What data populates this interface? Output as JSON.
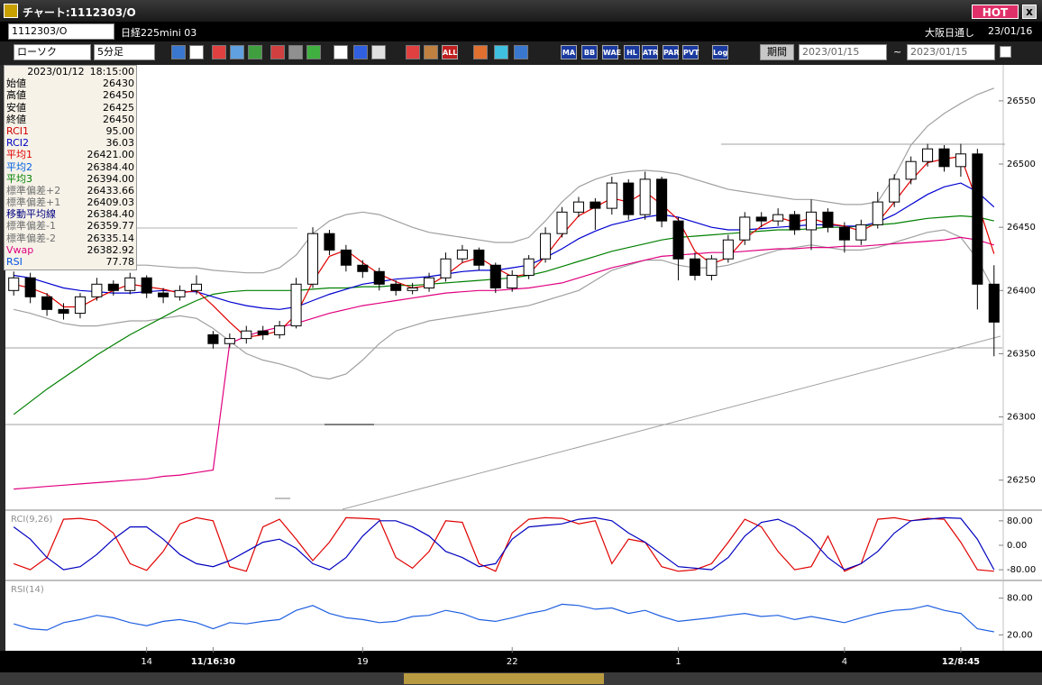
{
  "window": {
    "title": "チャート:1112303/O",
    "hot": "HOT"
  },
  "toolbar": {
    "code": "1112303/O",
    "name": "日経225mini 03",
    "market": "大阪日通し",
    "date": "23/01/16",
    "chart_type": "ローソク",
    "interval": "5分足",
    "buttons": [
      "ALL",
      "MA",
      "BB",
      "WAE",
      "HL",
      "ATR",
      "PAR",
      "PVT",
      "Log"
    ],
    "period": "期間",
    "from": "2023/01/15",
    "sep": "~",
    "to": "2023/01/15"
  },
  "info_panel": {
    "date": "2023/01/12",
    "time": "18:15:00",
    "rows": [
      {
        "label": "始値",
        "value": "26430",
        "color": "#000000"
      },
      {
        "label": "高値",
        "value": "26450",
        "color": "#000000"
      },
      {
        "label": "安値",
        "value": "26425",
        "color": "#000000"
      },
      {
        "label": "終値",
        "value": "26450",
        "color": "#000000"
      },
      {
        "label": "RCI1",
        "value": "95.00",
        "color": "#d00000"
      },
      {
        "label": "RCI2",
        "value": "36.03",
        "color": "#0000c0"
      },
      {
        "label": "平均1",
        "value": "26421.00",
        "color": "#e00000"
      },
      {
        "label": "平均2",
        "value": "26384.40",
        "color": "#0060e0"
      },
      {
        "label": "平均3",
        "value": "26394.00",
        "color": "#008000"
      },
      {
        "label": "標準偏差+2",
        "value": "26433.66",
        "color": "#707070"
      },
      {
        "label": "標準偏差+1",
        "value": "26409.03",
        "color": "#707070"
      },
      {
        "label": "移動平均線",
        "value": "26384.40",
        "color": "#000080"
      },
      {
        "label": "標準偏差-1",
        "value": "26359.77",
        "color": "#707070"
      },
      {
        "label": "標準偏差-2",
        "value": "26335.14",
        "color": "#707070"
      },
      {
        "label": "Vwap",
        "value": "26382.92",
        "color": "#e0007f"
      },
      {
        "label": "RSI",
        "value": "77.78",
        "color": "#0050e0"
      }
    ]
  },
  "chart_data": [
    {
      "type": "candlestick",
      "categories": [
        null,
        null,
        null,
        null,
        null,
        null,
        null,
        null,
        "14",
        null,
        null,
        null,
        "11/16:30",
        null,
        null,
        null,
        null,
        null,
        null,
        null,
        null,
        "19",
        null,
        null,
        null,
        null,
        null,
        null,
        null,
        null,
        "22",
        null,
        null,
        null,
        null,
        null,
        null,
        null,
        null,
        null,
        "1",
        null,
        null,
        null,
        null,
        null,
        null,
        null,
        null,
        null,
        "4",
        null,
        null,
        null,
        null,
        null,
        null,
        "12/8:45",
        null,
        null
      ],
      "open": [
        26400,
        26410,
        26395,
        26385,
        26382,
        26395,
        26405,
        26400,
        26410,
        26398,
        26395,
        26400,
        26365,
        26358,
        26362,
        26368,
        26365,
        26372,
        26405,
        26445,
        26432,
        26420,
        26415,
        26405,
        26400,
        26402,
        26410,
        26425,
        26432,
        26420,
        26402,
        26412,
        26425,
        26445,
        26462,
        26470,
        26465,
        26485,
        26460,
        26488,
        26455,
        26425,
        26412,
        26425,
        26440,
        26458,
        26455,
        26460,
        26448,
        26462,
        26450,
        26440,
        26452,
        26470,
        26488,
        26502,
        26512,
        26498,
        26508,
        26405
      ],
      "high": [
        26415,
        26414,
        26398,
        26390,
        26398,
        26410,
        26408,
        26414,
        26412,
        26402,
        26404,
        26412,
        26368,
        26366,
        26372,
        26372,
        26376,
        26410,
        26450,
        26448,
        26436,
        26424,
        26418,
        26408,
        26406,
        26414,
        26430,
        26436,
        26434,
        26422,
        26416,
        26428,
        26450,
        26466,
        26474,
        26473,
        26490,
        26488,
        26494,
        26490,
        26458,
        26430,
        26428,
        26444,
        26462,
        26462,
        26465,
        26463,
        26472,
        26465,
        26454,
        26456,
        26478,
        26492,
        26506,
        26516,
        26515,
        26516,
        26512,
        26420
      ],
      "low": [
        26396,
        26390,
        26380,
        26377,
        26378,
        26392,
        26396,
        26397,
        26394,
        26390,
        26392,
        26397,
        26354,
        26355,
        26358,
        26361,
        26362,
        26370,
        26402,
        26428,
        26415,
        26410,
        26400,
        26396,
        26397,
        26399,
        26407,
        26422,
        26416,
        26398,
        26399,
        26409,
        26422,
        26442,
        26458,
        26448,
        26460,
        26456,
        26456,
        26450,
        26408,
        26408,
        26408,
        26422,
        26436,
        26450,
        26451,
        26444,
        26432,
        26446,
        26430,
        26436,
        26449,
        26466,
        26484,
        26498,
        26494,
        26490,
        26385,
        26348
      ],
      "close": [
        26410,
        26395,
        26385,
        26382,
        26395,
        26405,
        26400,
        26410,
        26398,
        26395,
        26400,
        26405,
        26358,
        26362,
        26368,
        26365,
        26372,
        26405,
        26445,
        26432,
        26420,
        26415,
        26405,
        26400,
        26402,
        26410,
        26425,
        26432,
        26420,
        26402,
        26412,
        26425,
        26445,
        26462,
        26470,
        26465,
        26485,
        26460,
        26488,
        26455,
        26425,
        26412,
        26425,
        26440,
        26458,
        26455,
        26460,
        26448,
        26462,
        26450,
        26440,
        26452,
        26470,
        26488,
        26502,
        26512,
        26498,
        26508,
        26405,
        26375
      ],
      "up_color": "#ffffff",
      "down_color": "#000000",
      "series": [
        {
          "color": "#a0a0a0",
          "values": [
            26430,
            26428,
            26426,
            26424,
            26422,
            26420,
            26420,
            26420,
            26420,
            26419,
            26418,
            26418,
            26416,
            26415,
            26414,
            26414,
            26418,
            26428,
            26445,
            26455,
            26460,
            26462,
            26460,
            26455,
            26450,
            26446,
            26444,
            26442,
            26440,
            26438,
            26438,
            26442,
            26455,
            26470,
            26482,
            26488,
            26492,
            26494,
            26495,
            26494,
            26492,
            26488,
            26484,
            26480,
            26478,
            26476,
            26474,
            26472,
            26472,
            26470,
            26468,
            26468,
            26470,
            26490,
            26515,
            26530,
            26540,
            26548,
            26555,
            26560
          ]
        },
        {
          "color": "#a0a0a0",
          "values": [
            26385,
            26382,
            26378,
            26374,
            26372,
            26372,
            26374,
            26376,
            26376,
            26378,
            26380,
            26378,
            26370,
            26360,
            26350,
            26345,
            26342,
            26338,
            26332,
            26330,
            26334,
            26345,
            26358,
            26368,
            26372,
            26376,
            26378,
            26380,
            26382,
            26384,
            26386,
            26388,
            26392,
            26396,
            26400,
            26408,
            26416,
            26420,
            26424,
            26424,
            26420,
            26418,
            26418,
            26420,
            26424,
            26428,
            26432,
            26434,
            26436,
            26434,
            26432,
            26432,
            26434,
            26438,
            26442,
            26446,
            26448,
            26442,
            26425,
            26400
          ]
        },
        {
          "color": "#e0007f",
          "values": [
            26243,
            26244,
            26245,
            26246,
            26247,
            26248,
            26249,
            26250,
            26251,
            26253,
            26254,
            26256,
            26258,
            26358,
            26364,
            26368,
            26371,
            26374,
            26378,
            26382,
            26385,
            26388,
            26390,
            26392,
            26394,
            26396,
            26398,
            26399,
            26400,
            26400,
            26401,
            26402,
            26404,
            26406,
            26410,
            26414,
            26418,
            26421,
            26424,
            26427,
            26428,
            26429,
            26430,
            26430,
            26431,
            26432,
            26433,
            26433,
            26434,
            26434,
            26435,
            26435,
            26436,
            26437,
            26438,
            26439,
            26440,
            26442,
            26440,
            26436
          ]
        },
        {
          "color": "#008000",
          "values": [
            26302,
            26312,
            26322,
            26331,
            26340,
            26349,
            26357,
            26365,
            26372,
            26379,
            26386,
            26392,
            26397,
            26399,
            26400,
            26400,
            26400,
            26400,
            26401,
            26402,
            26402,
            26403,
            26403,
            26404,
            26404,
            26405,
            26406,
            26407,
            26408,
            26409,
            26410,
            26412,
            26415,
            26419,
            26423,
            26427,
            26431,
            26434,
            26437,
            26440,
            26442,
            26443,
            26444,
            26445,
            26446,
            26447,
            26448,
            26448,
            26449,
            26450,
            26450,
            26451,
            26452,
            26453,
            26455,
            26457,
            26458,
            26459,
            26458,
            26455
          ]
        },
        {
          "color": "#0000d0",
          "values": [
            26412,
            26410,
            26406,
            26402,
            26400,
            26399,
            26398,
            26398,
            26399,
            26400,
            26399,
            26399,
            26395,
            26391,
            26388,
            26386,
            26385,
            26387,
            26392,
            26397,
            26401,
            26405,
            26407,
            26409,
            26410,
            26411,
            26413,
            26415,
            26416,
            26416,
            26418,
            26420,
            26426,
            26433,
            26441,
            26447,
            26452,
            26455,
            26458,
            26460,
            26458,
            26454,
            26450,
            26448,
            26448,
            26449,
            26450,
            26451,
            26452,
            26452,
            26451,
            26451,
            26454,
            26460,
            26468,
            26476,
            26482,
            26485,
            26478,
            26466
          ]
        },
        {
          "color": "#e00000",
          "values": [
            26405,
            26402,
            26397,
            26387,
            26387,
            26394,
            26400,
            26405,
            26403,
            26401,
            26398,
            26400,
            26388,
            26375,
            26363,
            26365,
            26368,
            26381,
            26407,
            26427,
            26432,
            26422,
            26413,
            26407,
            26402,
            26404,
            26412,
            26422,
            26426,
            26418,
            26411,
            26413,
            26427,
            26444,
            26459,
            26466,
            26473,
            26470,
            26478,
            26468,
            26456,
            26431,
            26421,
            26426,
            26441,
            26451,
            26458,
            26454,
            26457,
            26453,
            26451,
            26447,
            26454,
            26470,
            26487,
            26501,
            26504,
            26506,
            26470,
            26429
          ]
        }
      ],
      "ylim": [
        26227,
        26577
      ],
      "yticks": [
        26250,
        26300,
        26350,
        26400,
        26450,
        26500,
        26550
      ]
    },
    {
      "type": "line",
      "title": "RCI(9,26)",
      "series": [
        {
          "color": "#e00000",
          "values": [
            -60,
            -80,
            -40,
            85,
            88,
            80,
            40,
            -60,
            -82,
            -20,
            70,
            90,
            80,
            -70,
            -85,
            60,
            85,
            20,
            -50,
            10,
            90,
            88,
            85,
            -40,
            -75,
            -20,
            80,
            75,
            -60,
            -85,
            40,
            85,
            90,
            88,
            70,
            80,
            -60,
            20,
            10,
            -70,
            -85,
            -80,
            -60,
            10,
            85,
            60,
            -20,
            -80,
            -70,
            30,
            -85,
            -60,
            85,
            90,
            80,
            88,
            85,
            10,
            -80,
            -85
          ]
        },
        {
          "color": "#0000c0",
          "values": [
            60,
            20,
            -40,
            -80,
            -70,
            -30,
            20,
            60,
            60,
            20,
            -30,
            -60,
            -70,
            -50,
            -20,
            10,
            20,
            -10,
            -60,
            -80,
            -40,
            30,
            80,
            80,
            60,
            30,
            -20,
            -40,
            -70,
            -60,
            20,
            60,
            65,
            70,
            85,
            90,
            80,
            40,
            10,
            -30,
            -70,
            -75,
            -80,
            -40,
            30,
            75,
            85,
            60,
            20,
            -40,
            -80,
            -60,
            -20,
            40,
            80,
            85,
            90,
            88,
            20,
            -80
          ]
        }
      ],
      "ylim": [
        -112,
        109
      ],
      "yticks": [
        {
          "value": 80,
          "label": "80.00"
        },
        {
          "value": 0,
          "label": "0.00"
        },
        {
          "value": -80,
          "label": "-80.00"
        }
      ]
    },
    {
      "type": "line",
      "title": "RSI(14)",
      "series": [
        {
          "color": "#2060e0",
          "values": [
            38,
            30,
            28,
            40,
            45,
            52,
            48,
            40,
            35,
            42,
            45,
            40,
            30,
            40,
            38,
            42,
            45,
            60,
            68,
            55,
            48,
            45,
            40,
            42,
            50,
            52,
            60,
            55,
            45,
            42,
            48,
            55,
            60,
            70,
            68,
            62,
            64,
            55,
            60,
            50,
            42,
            45,
            48,
            52,
            55,
            50,
            52,
            45,
            50,
            45,
            40,
            48,
            55,
            60,
            62,
            68,
            60,
            55,
            30,
            25
          ]
        }
      ],
      "ylim": [
        -3,
        106
      ],
      "yticks": [
        {
          "value": 80,
          "label": "80.00"
        },
        {
          "value": 20,
          "label": "20.00"
        }
      ]
    }
  ]
}
